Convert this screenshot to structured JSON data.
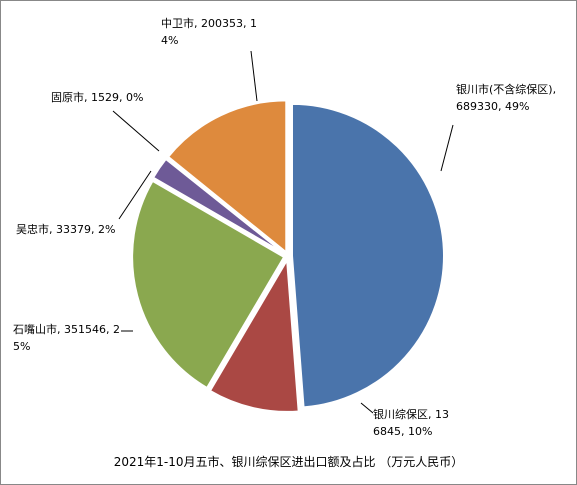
{
  "chart_data": {
    "type": "pie",
    "title": "2021年1-10月五市、银川综保区进出口额及占比 （万元人民币）",
    "values": [
      689330,
      136845,
      351546,
      33379,
      1529,
      200353
    ],
    "value_labels": [
      "银川市(不含综保区), 689330, 49%",
      "银川综保区, 136845, 10%",
      "石嘴山市, 351546, 25%",
      "吴忠市, 33379, 2%",
      "固原市, 1529, 0%",
      "中卫市, 200353, 14%"
    ],
    "colors": [
      "#4a74ab",
      "#aa4844",
      "#8aa84f",
      "#6e5a97",
      "#4bacc6",
      "#de8a3d"
    ]
  }
}
